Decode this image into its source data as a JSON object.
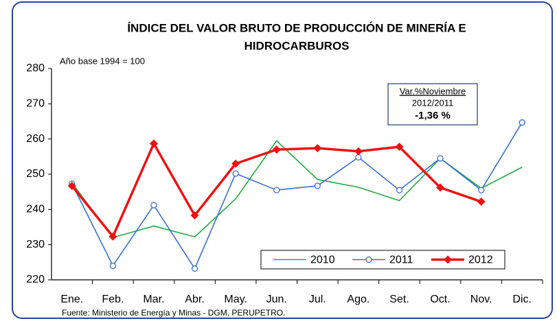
{
  "chart_data": {
    "type": "line",
    "title": [
      "ÍNDICE DEL VALOR BRUTO DE PRODUCCIÓN DE MINERÍA E",
      "HIDROCARBUROS"
    ],
    "subtitle": "Año base 1994  =  100",
    "annotation": [
      "Var.%Noviembre",
      "2012/2011",
      "-1,36 %"
    ],
    "source": "Fuente: Ministerio de Energía y Minas - DGM, PERUPETRO.",
    "categories": [
      "Ene.",
      "Feb.",
      "Mar.",
      "Abr.",
      "May.",
      "Jun.",
      "Jul.",
      "Ago.",
      "Set.",
      "Oct.",
      "Nov.",
      "Dic."
    ],
    "series": [
      {
        "name": "2010",
        "color": "#22aa44",
        "marker": "none",
        "values": [
          247.5,
          232,
          235.3,
          232.2,
          243,
          259.5,
          248.5,
          246.3,
          242.5,
          254.5,
          246,
          252
        ]
      },
      {
        "name": "2011",
        "color": "#3a6fd0",
        "marker": "circle",
        "values": [
          247.3,
          224,
          241.2,
          223.2,
          250.2,
          245.5,
          246.7,
          254.8,
          245.5,
          254.5,
          245.5,
          264.7
        ]
      },
      {
        "name": "2012",
        "color": "#ee1111",
        "marker": "diamond",
        "values": [
          246.7,
          232.3,
          258.7,
          238.3,
          253,
          257,
          257.4,
          256.5,
          257.8,
          246.2,
          242.2,
          null
        ]
      }
    ],
    "ylim": [
      220,
      280
    ],
    "yticks": [
      220,
      230,
      240,
      250,
      260,
      270,
      280
    ],
    "grid": false,
    "legend": "lower right"
  }
}
